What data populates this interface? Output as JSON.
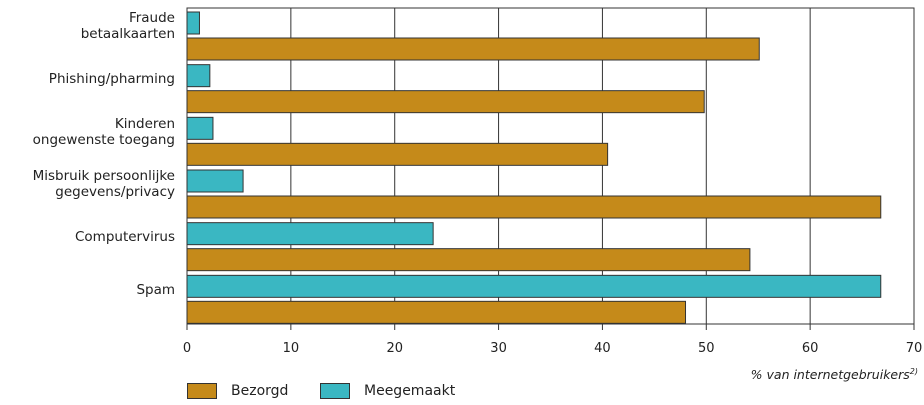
{
  "chart_data": {
    "type": "bar",
    "orientation": "horizontal",
    "categories": [
      "Fraude\nbetaalkaarten",
      "Phishing/pharming",
      "Kinderen\nongewenste toegang",
      "Misbruik persoonlijke\ngegevens/privacy",
      "Computervirus",
      "Spam"
    ],
    "series": [
      {
        "name": "Meegemaakt",
        "color": "#3ab7c2",
        "values": [
          1.2,
          2.2,
          2.5,
          5.4,
          23.7,
          66.8
        ]
      },
      {
        "name": "Bezorgd",
        "color": "#c58a1a",
        "values": [
          55.1,
          49.8,
          40.5,
          66.8,
          54.2,
          48.0
        ]
      }
    ],
    "xlabel": "% van internetgebruikers",
    "xlabel_sup": "2)",
    "xlim": [
      0,
      70
    ],
    "xticks": [
      0,
      10,
      20,
      30,
      40,
      50,
      60,
      70
    ],
    "grid": true,
    "legend_position": "bottom-left"
  }
}
